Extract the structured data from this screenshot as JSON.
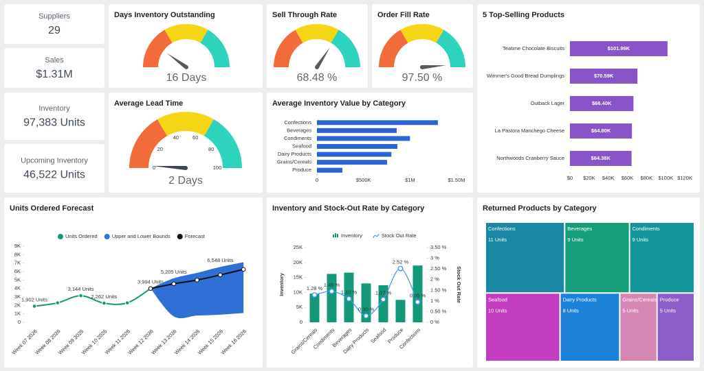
{
  "kpis": [
    {
      "label": "Suppliers",
      "value": "29"
    },
    {
      "label": "Sales",
      "value": "$1.31M"
    },
    {
      "label": "Inventory",
      "value": "97,383 Units"
    },
    {
      "label": "Upcoming Inventory",
      "value": "46,522 Units"
    }
  ],
  "chart_data": [
    {
      "type": "gauge",
      "title": "Days Inventory Outstanding",
      "value": 16,
      "value_label": "16 Days",
      "range": [
        0,
        80
      ],
      "colors": [
        "#f26b3a",
        "#f5d617",
        "#2ed3bd"
      ]
    },
    {
      "type": "gauge",
      "title": "Sell Through Rate",
      "value": 68.48,
      "value_label": "68.48 %",
      "range": [
        0,
        100
      ],
      "colors": [
        "#f26b3a",
        "#f5d617",
        "#2ed3bd"
      ]
    },
    {
      "type": "gauge",
      "title": "Order Fill Rate",
      "value": 97.5,
      "value_label": "97.50 %",
      "range": [
        0,
        100
      ],
      "colors": [
        "#f26b3a",
        "#f5d617",
        "#2ed3bd"
      ]
    },
    {
      "type": "gauge",
      "title": "Average Lead Time",
      "value": 2,
      "value_label": "2 Days",
      "range": [
        0,
        100
      ],
      "ticks": [
        0,
        20,
        40,
        60,
        80,
        100
      ],
      "colors": [
        "#f26b3a",
        "#f5d617",
        "#2ed3bd"
      ]
    },
    {
      "type": "bar",
      "orientation": "horizontal",
      "title": "Average Inventory Value by Category",
      "categories": [
        "Confections",
        "Beverages",
        "Condiments",
        "Seafood",
        "Dairy Products",
        "Grains/Cereals",
        "Produce"
      ],
      "values": [
        1300000,
        857000,
        1000000,
        865000,
        800000,
        754000,
        273000
      ],
      "color": "#2a64d0",
      "xlim": [
        0,
        1500000
      ],
      "xticks": [
        0,
        {
          "value": 500000,
          "label": "$500K"
        },
        {
          "value": 1000000,
          "label": "$1M"
        },
        {
          "value": 1500000,
          "label": "$1.50M"
        }
      ]
    },
    {
      "type": "bar",
      "orientation": "horizontal",
      "title": "5 Top-Selling Products",
      "categories": [
        "Teatime Chocolate Biscuits",
        "Wimmer's Good Bread Dumplings",
        "Outback Lager",
        "La Pastora Manchego Cheese",
        "Northwoods Cranberry Sauce"
      ],
      "values": [
        101990,
        70590,
        66400,
        64800,
        64380
      ],
      "value_labels": [
        "$101.99K",
        "$70.59K",
        "$66.40K",
        "$64.80K",
        "$64.38K"
      ],
      "color": "#8854c8",
      "xlim": [
        0,
        120000
      ],
      "xticks": [
        {
          "value": 0,
          "label": "$0"
        },
        {
          "value": 20000,
          "label": "$20K"
        },
        {
          "value": 40000,
          "label": "$40K"
        },
        {
          "value": 60000,
          "label": "$60K"
        },
        {
          "value": 80000,
          "label": "$80K"
        },
        {
          "value": 100000,
          "label": "$100K"
        },
        {
          "value": 120000,
          "label": "$120K"
        }
      ]
    },
    {
      "type": "line",
      "title": "Units Ordered Forecast",
      "categories": [
        "Week 07 2026",
        "Week 08 2026",
        "Week 09 2026",
        "Week 10 2026",
        "Week 11 2026",
        "Week 12 2026",
        "Week 13 2026",
        "Week 14 2026",
        "Week 15 2026",
        "Week 16 2026"
      ],
      "series": [
        {
          "name": "Units Ordered",
          "color": "#15977a",
          "values": [
            1902,
            2300,
            3144,
            2262,
            2300,
            3994,
            null,
            null,
            null,
            null
          ],
          "value_labels": [
            "1,902 Units",
            null,
            "3,144 Units",
            "2,262 Units",
            null,
            "3,994 Units",
            null,
            null,
            null,
            null
          ]
        },
        {
          "name": "Upper and Lower Bounds",
          "color": "#2f6fd6",
          "values": [
            null,
            null,
            null,
            null,
            null,
            3994,
            5205,
            5850,
            6548,
            7100
          ],
          "lower": [
            null,
            null,
            null,
            null,
            null,
            3994,
            700,
            800,
            900,
            1100
          ],
          "value_labels": [
            null,
            null,
            null,
            null,
            null,
            null,
            "5,205 Units",
            null,
            "6,548 Units",
            null
          ]
        },
        {
          "name": "Forecast",
          "color": "#111111",
          "values": [
            null,
            null,
            null,
            null,
            null,
            3994,
            4550,
            5000,
            5600,
            6260
          ]
        }
      ],
      "ylim": [
        0,
        9000
      ],
      "yticks": [
        0,
        {
          "value": 1000,
          "label": "1K"
        },
        {
          "value": 2000,
          "label": "2K"
        },
        {
          "value": 3000,
          "label": "3K"
        },
        {
          "value": 4000,
          "label": "4K"
        },
        {
          "value": 5000,
          "label": "5K"
        },
        {
          "value": 6000,
          "label": "6K"
        },
        {
          "value": 7000,
          "label": "7K"
        },
        {
          "value": 8000,
          "label": "8K"
        },
        {
          "value": 9000,
          "label": "9K"
        }
      ]
    },
    {
      "type": "combo",
      "title": "Inventory and Stock-Out Rate by Category",
      "categories": [
        "Grains/Cereals",
        "Condiments",
        "Beverages",
        "Dairy Products",
        "Seafood",
        "Produce",
        "Confections"
      ],
      "series": [
        {
          "name": "Inventory",
          "type": "bar",
          "color": "#13987a",
          "values": [
            9600,
            16200,
            16600,
            13000,
            12400,
            7500,
            19000
          ]
        },
        {
          "name": "Stock Out Rate",
          "type": "line",
          "axis": "y2",
          "color": "#4a9be8",
          "values": [
            1.28,
            1.45,
            1.1,
            0.3,
            1.07,
            2.52,
            0.95
          ],
          "value_labels": [
            "1.28 %",
            "1.45 %",
            "1.10 %",
            "0.30 %",
            "1.07 %",
            "2.52 %",
            "0.95 %"
          ]
        }
      ],
      "ylabel": "Inventory",
      "y2label": "Stock Out Rate",
      "ylim": [
        0,
        25000
      ],
      "yticks": [
        0,
        {
          "value": 5000,
          "label": "5K"
        },
        {
          "value": 10000,
          "label": "10K"
        },
        {
          "value": 15000,
          "label": "15K"
        },
        {
          "value": 20000,
          "label": "20K"
        },
        {
          "value": 25000,
          "label": "25K"
        }
      ],
      "y2lim": [
        0,
        3.5
      ],
      "y2ticks": [
        {
          "value": 0,
          "label": "0 %"
        },
        {
          "value": 0.5,
          "label": "0.50 %"
        },
        {
          "value": 1,
          "label": "1 %"
        },
        {
          "value": 1.5,
          "label": "1.50 %"
        },
        {
          "value": 2,
          "label": "2 %"
        },
        {
          "value": 2.5,
          "label": "2.50 %"
        },
        {
          "value": 3,
          "label": "3 %"
        },
        {
          "value": 3.5,
          "label": "3.50 %"
        }
      ]
    },
    {
      "type": "treemap",
      "title": "Returned Products by Category",
      "categories": [
        "Confections",
        "Beverages",
        "Condiments",
        "Seafood",
        "Dairy Products",
        "Grains/Cereals",
        "Produce"
      ],
      "values": [
        11,
        9,
        9,
        10,
        8,
        5,
        5
      ],
      "value_labels": [
        "11 Units",
        "9 Units",
        "9 Units",
        "10 Units",
        "8 Units",
        "5 Units",
        "5 Units"
      ],
      "colors": [
        "#1a87a3",
        "#169e7a",
        "#14969a",
        "#c23dbf",
        "#1b82d8",
        "#d587b4",
        "#8d5ec9"
      ]
    }
  ]
}
